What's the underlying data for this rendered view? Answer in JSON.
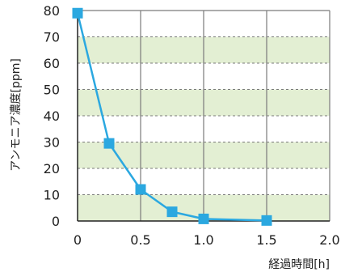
{
  "chart_data": {
    "type": "line",
    "title": "",
    "xlabel": "経過時間[h]",
    "ylabel": "アンモニア濃度[ppm]",
    "xlim": [
      0,
      2.0
    ],
    "ylim": [
      0,
      80
    ],
    "x_ticks": [
      "0",
      "0.5",
      "1.0",
      "1.5",
      "2.0"
    ],
    "y_ticks": [
      "0",
      "10",
      "20",
      "30",
      "40",
      "50",
      "60",
      "70",
      "80"
    ],
    "grid": true,
    "legend": "none",
    "series": [
      {
        "x": [
          0,
          0.25,
          0.5,
          0.75,
          1.0,
          1.5
        ],
        "y": [
          79,
          29.5,
          12,
          3.5,
          0.8,
          0.2
        ],
        "marker": "square",
        "color": "#2ba8e0"
      }
    ],
    "colors": {
      "band": "#e3efd3",
      "grid": "#7a7a7a",
      "axis": "#222222",
      "line": "#2ba8e0"
    }
  }
}
